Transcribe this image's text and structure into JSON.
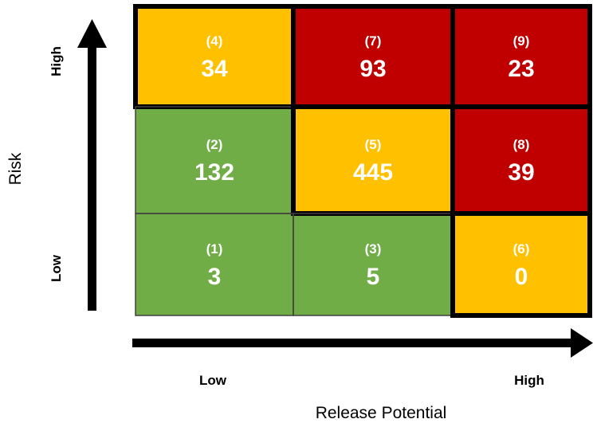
{
  "chart_data": {
    "type": "heatmap",
    "title": "",
    "xlabel": "Release Potential",
    "ylabel": "Risk",
    "x_ticks": [
      "Low",
      "High"
    ],
    "y_ticks": [
      "Low",
      "High"
    ],
    "rows": [
      {
        "level": "high",
        "cells": [
          {
            "id": "(4)",
            "value": "34",
            "color": "#ffc000"
          },
          {
            "id": "(7)",
            "value": "93",
            "color": "#c00000"
          },
          {
            "id": "(9)",
            "value": "23",
            "color": "#c00000"
          }
        ]
      },
      {
        "level": "medium",
        "cells": [
          {
            "id": "(2)",
            "value": "132",
            "color": "#70ad47"
          },
          {
            "id": "(5)",
            "value": "445",
            "color": "#ffc000"
          },
          {
            "id": "(8)",
            "value": "39",
            "color": "#c00000"
          }
        ]
      },
      {
        "level": "low",
        "cells": [
          {
            "id": "(1)",
            "value": "3",
            "color": "#70ad47"
          },
          {
            "id": "(3)",
            "value": "5",
            "color": "#70ad47"
          },
          {
            "id": "(6)",
            "value": "0",
            "color": "#ffc000"
          }
        ]
      }
    ]
  }
}
